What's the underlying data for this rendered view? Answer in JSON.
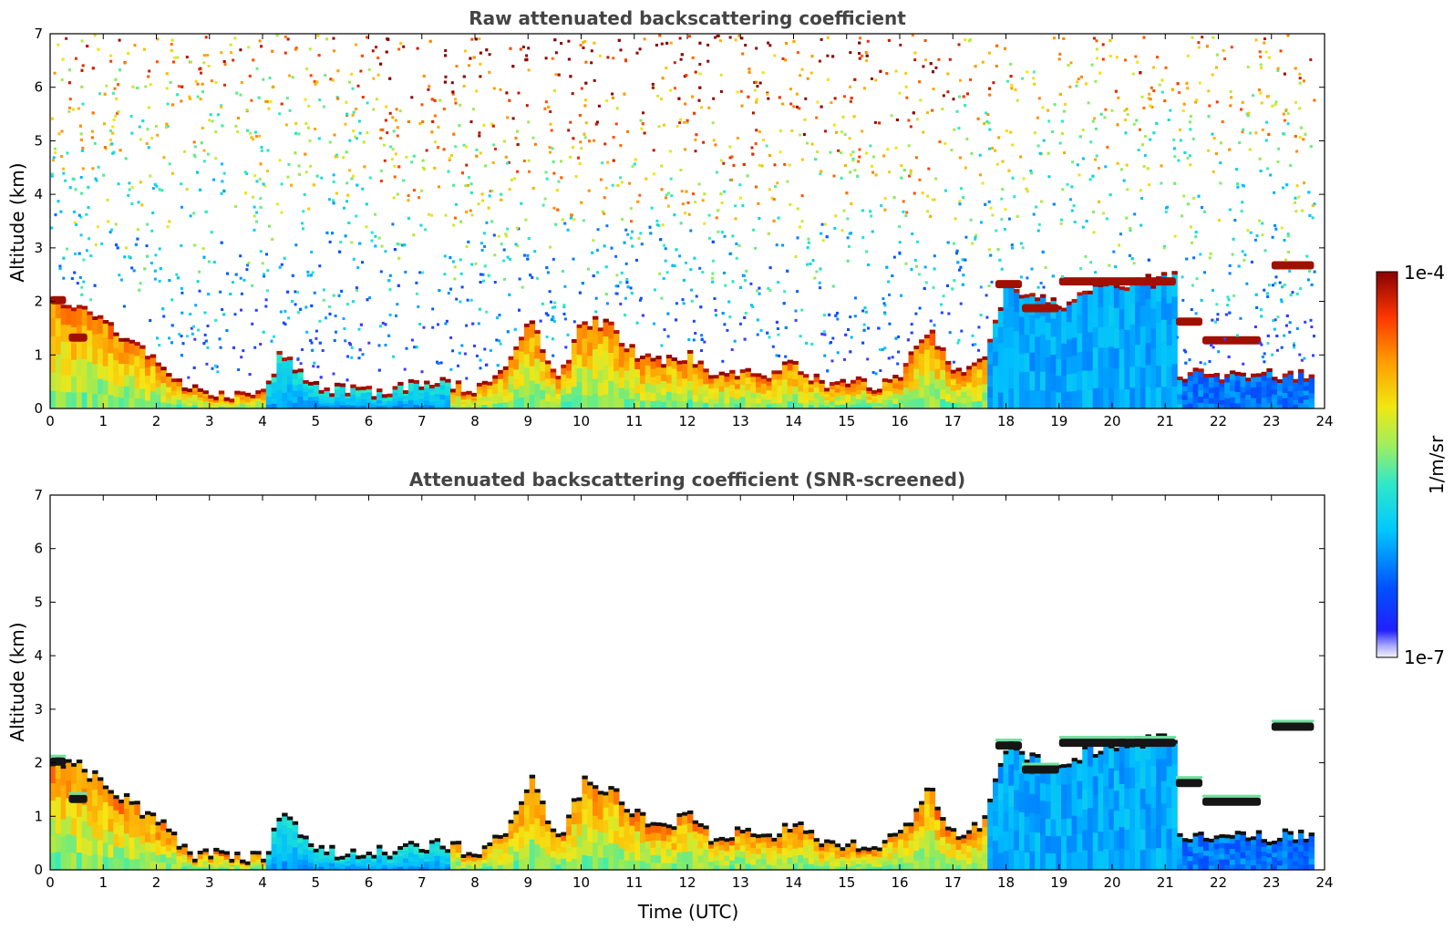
{
  "chart_data": [
    {
      "type": "heatmap",
      "id": "raw",
      "title": "Raw attenuated backscattering coefficient",
      "xlabel": "",
      "ylabel": "Altitude (km)",
      "xlim": [
        0,
        24
      ],
      "ylim": [
        0,
        7
      ],
      "xticks": [
        "0",
        "1",
        "2",
        "3",
        "4",
        "5",
        "6",
        "7",
        "8",
        "9",
        "10",
        "11",
        "12",
        "13",
        "14",
        "15",
        "16",
        "17",
        "18",
        "19",
        "20",
        "21",
        "22",
        "23",
        "24"
      ],
      "yticks": [
        "0",
        "1",
        "2",
        "3",
        "4",
        "5",
        "6",
        "7"
      ],
      "snr_screened": false,
      "noise_fill": true,
      "features": {
        "boundary_layer_top_km": [
          [
            0,
            2.0
          ],
          [
            0.5,
            1.9
          ],
          [
            1,
            1.6
          ],
          [
            1.5,
            1.2
          ],
          [
            2,
            0.9
          ],
          [
            2.5,
            0.3
          ],
          [
            3,
            0.25
          ],
          [
            3.5,
            0.2
          ],
          [
            4,
            0.2
          ],
          [
            4.3,
            1.1
          ],
          [
            4.7,
            0.6
          ],
          [
            5,
            0.35
          ],
          [
            5.5,
            0.3
          ],
          [
            6,
            0.3
          ],
          [
            6.5,
            0.35
          ],
          [
            7,
            0.45
          ],
          [
            7.5,
            0.4
          ],
          [
            8,
            0.3
          ],
          [
            8.5,
            0.6
          ],
          [
            9,
            1.7
          ],
          [
            9.5,
            0.5
          ],
          [
            10,
            1.6
          ],
          [
            10.5,
            1.5
          ],
          [
            11,
            1.0
          ],
          [
            11.5,
            0.8
          ],
          [
            12,
            1.0
          ],
          [
            12.5,
            0.5
          ],
          [
            13,
            0.7
          ],
          [
            13.5,
            0.6
          ],
          [
            14,
            0.8
          ],
          [
            14.5,
            0.4
          ],
          [
            15,
            0.5
          ],
          [
            15.5,
            0.4
          ],
          [
            16,
            0.6
          ],
          [
            16.5,
            1.5
          ],
          [
            17,
            0.6
          ],
          [
            17.5,
            0.8
          ],
          [
            18,
            2.3
          ],
          [
            18.5,
            2.0
          ],
          [
            19,
            1.9
          ],
          [
            19.5,
            2.2
          ],
          [
            20,
            2.3
          ],
          [
            20.5,
            2.35
          ],
          [
            21,
            2.4
          ],
          [
            21.2,
            2.4
          ]
        ],
        "cloud_layers": [
          {
            "t_start": 0.0,
            "t_end": 0.3,
            "alt_km": 2.0
          },
          {
            "t_start": 0.35,
            "t_end": 0.7,
            "alt_km": 1.3
          },
          {
            "t_start": 17.8,
            "t_end": 18.3,
            "alt_km": 2.3
          },
          {
            "t_start": 18.3,
            "t_end": 19.0,
            "alt_km": 1.85
          },
          {
            "t_start": 19.0,
            "t_end": 21.2,
            "alt_km": 2.35
          },
          {
            "t_start": 21.2,
            "t_end": 21.7,
            "alt_km": 1.6
          },
          {
            "t_start": 21.7,
            "t_end": 22.8,
            "alt_km": 1.25
          },
          {
            "t_start": 23.0,
            "t_end": 23.8,
            "alt_km": 2.65
          }
        ]
      }
    },
    {
      "type": "heatmap",
      "id": "screened",
      "title": "Attenuated backscattering coefficient (SNR-screened)",
      "xlabel": "Time (UTC)",
      "ylabel": "Altitude (km)",
      "xlim": [
        0,
        24
      ],
      "ylim": [
        0,
        7
      ],
      "xticks": [
        "0",
        "1",
        "2",
        "3",
        "4",
        "5",
        "6",
        "7",
        "8",
        "9",
        "10",
        "11",
        "12",
        "13",
        "14",
        "15",
        "16",
        "17",
        "18",
        "19",
        "20",
        "21",
        "22",
        "23",
        "24"
      ],
      "yticks": [
        "0",
        "1",
        "2",
        "3",
        "4",
        "5",
        "6",
        "7"
      ],
      "snr_screened": true,
      "noise_fill": false
    }
  ],
  "colorbar": {
    "label": "1/m/sr",
    "max_label": "1e-4",
    "min_label": "1e-7",
    "scale": "log",
    "colormap": "jet"
  }
}
